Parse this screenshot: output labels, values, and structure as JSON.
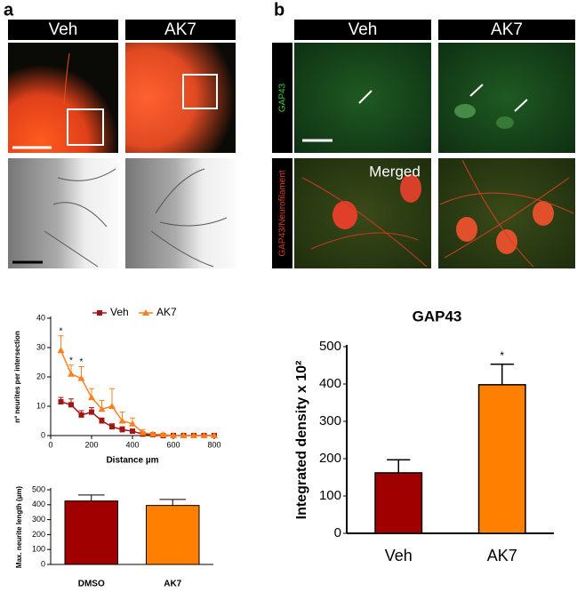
{
  "panel_labels": [
    "a",
    "b"
  ],
  "panel_a": {
    "columns": [
      "Veh",
      "AK7"
    ]
  },
  "panel_b": {
    "columns": [
      "Veh",
      "AK7"
    ],
    "rows": [
      "GAP43",
      "GAP43/Neurofilament"
    ],
    "overlay": "Merged"
  },
  "chart_data": [
    {
      "type": "line",
      "x": [
        50,
        100,
        150,
        200,
        250,
        300,
        350,
        400,
        450,
        500,
        550,
        600,
        650,
        700,
        750,
        800
      ],
      "series": [
        {
          "name": "Veh",
          "color": "#a31515",
          "marker": "square",
          "values": [
            11.5,
            10.5,
            7,
            8,
            5,
            3,
            2,
            1.5,
            0.5,
            0.3,
            0,
            0,
            0,
            0,
            0,
            0
          ],
          "errors": [
            1.5,
            2,
            1.5,
            1.5,
            1,
            1,
            1,
            0.5,
            0.5,
            0.3,
            0,
            0,
            0,
            0,
            0,
            0
          ]
        },
        {
          "name": "AK7",
          "color": "#ff7f1e",
          "marker": "triangle",
          "values": [
            29,
            21,
            19.5,
            13,
            9,
            10,
            5,
            4,
            1,
            0.5,
            0.3,
            0,
            0,
            0,
            0,
            0
          ],
          "errors": [
            5,
            3,
            4,
            3,
            3,
            6,
            3,
            2,
            1,
            0.5,
            0.3,
            0,
            0,
            0,
            0,
            0
          ]
        }
      ],
      "annotations": [
        {
          "x": 50,
          "text": "*"
        },
        {
          "x": 100,
          "text": "*"
        },
        {
          "x": 150,
          "text": "*"
        }
      ],
      "xlim": [
        0,
        800
      ],
      "xticks": [
        0,
        200,
        400,
        600,
        800
      ],
      "ylim": [
        0,
        40
      ],
      "yticks": [
        0,
        10,
        20,
        30,
        40
      ],
      "xlabel": "Distance µm",
      "ylabel": "nº neurites per intersection"
    },
    {
      "type": "bar",
      "categories": [
        "DMSO",
        "AK7"
      ],
      "values": [
        425,
        395
      ],
      "errors": [
        40,
        40
      ],
      "colors": [
        "#a00000",
        "#ff7f00"
      ],
      "ylim": [
        0,
        500
      ],
      "yticks": [
        0,
        100,
        200,
        300,
        400,
        500
      ],
      "ylabel": "Max. neurite length (µm)"
    },
    {
      "type": "bar",
      "title": "GAP43",
      "categories": [
        "Veh",
        "AK7"
      ],
      "values": [
        162,
        398
      ],
      "errors": [
        35,
        55
      ],
      "colors": [
        "#a00000",
        "#ff7f00"
      ],
      "annotations": [
        {
          "category": "AK7",
          "text": "*"
        }
      ],
      "ylim": [
        0,
        500
      ],
      "yticks": [
        0,
        100,
        200,
        300,
        400,
        500
      ],
      "ylabel": "Integrated density x 10²"
    }
  ]
}
